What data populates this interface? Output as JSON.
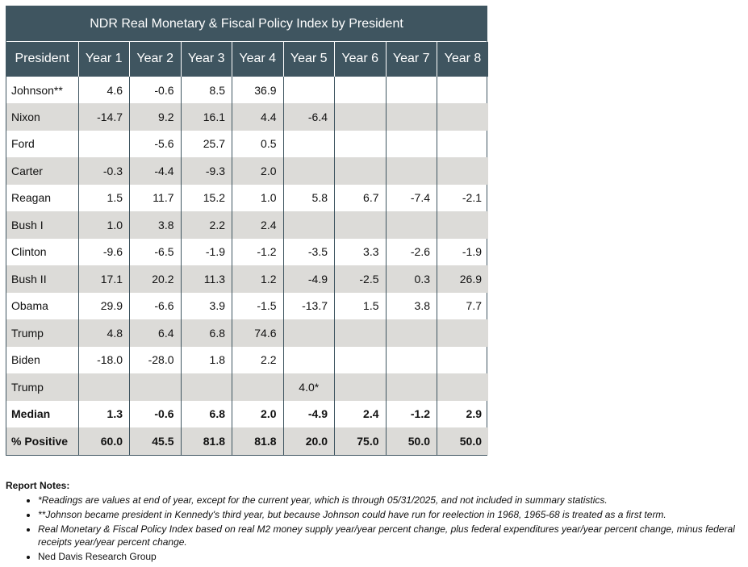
{
  "title": "NDR Real Monetary & Fiscal Policy Index by President",
  "columns": [
    "President",
    "Year 1",
    "Year 2",
    "Year 3",
    "Year 4",
    "Year 5",
    "Year 6",
    "Year 7",
    "Year 8"
  ],
  "rows": [
    {
      "name": "Johnson**",
      "values": [
        "4.6",
        "-0.6",
        "8.5",
        "36.9",
        "",
        "",
        "",
        ""
      ]
    },
    {
      "name": "Nixon",
      "values": [
        "-14.7",
        "9.2",
        "16.1",
        "4.4",
        "-6.4",
        "",
        "",
        ""
      ]
    },
    {
      "name": "Ford",
      "values": [
        "",
        "-5.6",
        "25.7",
        "0.5",
        "",
        "",
        "",
        ""
      ]
    },
    {
      "name": "Carter",
      "values": [
        "-0.3",
        "-4.4",
        "-9.3",
        "2.0",
        "",
        "",
        "",
        ""
      ]
    },
    {
      "name": "Reagan",
      "values": [
        "1.5",
        "11.7",
        "15.2",
        "1.0",
        "5.8",
        "6.7",
        "-7.4",
        "-2.1"
      ]
    },
    {
      "name": "Bush I",
      "values": [
        "1.0",
        "3.8",
        "2.2",
        "2.4",
        "",
        "",
        "",
        ""
      ]
    },
    {
      "name": "Clinton",
      "values": [
        "-9.6",
        "-6.5",
        "-1.9",
        "-1.2",
        "-3.5",
        "3.3",
        "-2.6",
        "-1.9"
      ]
    },
    {
      "name": "Bush II",
      "values": [
        "17.1",
        "20.2",
        "11.3",
        "1.2",
        "-4.9",
        "-2.5",
        "0.3",
        "26.9"
      ]
    },
    {
      "name": "Obama",
      "values": [
        "29.9",
        "-6.6",
        "3.9",
        "-1.5",
        "-13.7",
        "1.5",
        "3.8",
        "7.7"
      ]
    },
    {
      "name": "Trump",
      "values": [
        "4.8",
        "6.4",
        "6.8",
        "74.6",
        "",
        "",
        "",
        ""
      ]
    },
    {
      "name": "Biden",
      "values": [
        "-18.0",
        "-28.0",
        "1.8",
        "2.2",
        "",
        "",
        "",
        ""
      ]
    },
    {
      "name": "Trump",
      "values": [
        "",
        "",
        "",
        "",
        "4.0*",
        "",
        "",
        ""
      ]
    }
  ],
  "summary": [
    {
      "name": "Median",
      "values": [
        "1.3",
        "-0.6",
        "6.8",
        "2.0",
        "-4.9",
        "2.4",
        "-1.2",
        "2.9"
      ]
    },
    {
      "name": "% Positive",
      "values": [
        "60.0",
        "45.5",
        "81.8",
        "81.8",
        "20.0",
        "75.0",
        "50.0",
        "50.0"
      ]
    }
  ],
  "notes": {
    "title": "Report Notes:",
    "items": [
      {
        "text": "*Readings are values at end of year, except for the current year, which is through 05/31/2025, and not included in summary statistics.",
        "italic": true
      },
      {
        "text": "**Johnson became president in Kennedy's third year, but because Johnson could have run for reelection in 1968, 1965-68 is treated as a first term.",
        "italic": true
      },
      {
        "text": "Real Monetary & Fiscal Policy Index based on real M2 money supply year/year percent change, plus federal expenditures year/year percent change, minus federal receipts year/year percent change.",
        "italic": true
      },
      {
        "text": "Ned Davis Research Group",
        "italic": false
      }
    ]
  },
  "colors": {
    "header_bg": "#3f5560",
    "stripe_bg": "#dcdbd8"
  }
}
